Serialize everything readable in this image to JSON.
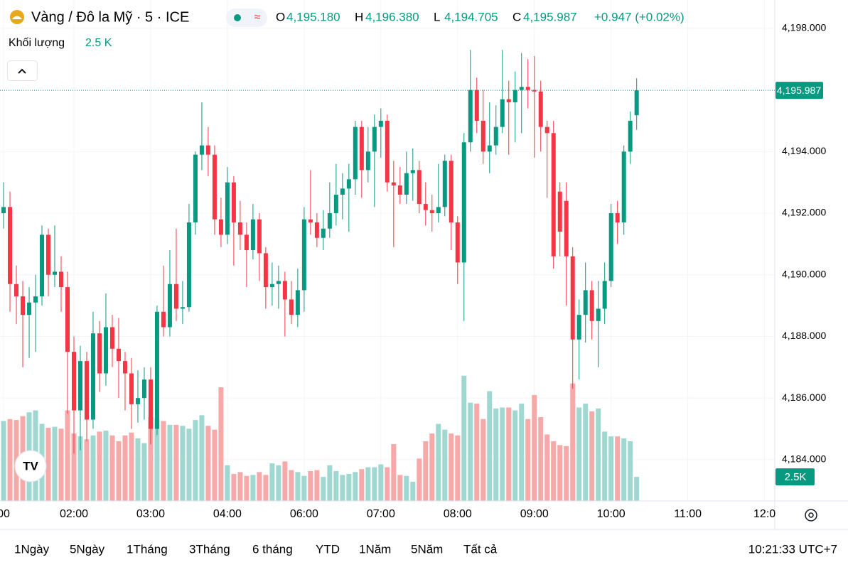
{
  "header": {
    "symbol": "Vàng / Đô la Mỹ · 5 · ICE",
    "ohlc": [
      {
        "prefix": "O",
        "value": "4,195.180"
      },
      {
        "prefix": "H",
        "value": "4,196.380"
      },
      {
        "prefix": "L",
        "value": "4,194.705"
      },
      {
        "prefix": "C",
        "value": "4,195.987"
      }
    ],
    "change": "+0.947 (+0.02%)",
    "volume_name": "Khối lượng",
    "volume_value": "2.5 K"
  },
  "chart_data": {
    "type": "candlestick",
    "up_color": "#089981",
    "down_color": "#f23645",
    "volume_up_color": "#9ed8d0",
    "volume_down_color": "#f7a9aa",
    "grid": true,
    "xlim": [
      -0.56,
      120.6
    ],
    "ylim": [
      4182.66,
      4198.92
    ],
    "volume_ylim": [
      0,
      52000
    ],
    "xticks": [
      {
        "value": 0,
        "label": "00"
      },
      {
        "value": 11,
        "label": "02:00"
      },
      {
        "value": 23,
        "label": "03:00"
      },
      {
        "value": 35,
        "label": "04:00"
      },
      {
        "value": 47,
        "label": "06:00"
      },
      {
        "value": 59,
        "label": "07:00"
      },
      {
        "value": 71,
        "label": "08:00"
      },
      {
        "value": 83,
        "label": "09:00"
      },
      {
        "value": 95,
        "label": "10:00"
      },
      {
        "value": 107,
        "label": "11:00"
      },
      {
        "value": 119,
        "label": "12:0"
      }
    ],
    "yticks": [
      {
        "value": 4184,
        "label": "4,184.000"
      },
      {
        "value": 4186,
        "label": "4,186.000"
      },
      {
        "value": 4188,
        "label": "4,188.000"
      },
      {
        "value": 4190,
        "label": "4,190.000"
      },
      {
        "value": 4192,
        "label": "4,192.000"
      },
      {
        "value": 4194,
        "label": "4,194.000"
      },
      {
        "value": 4198,
        "label": "4,198.000"
      }
    ],
    "last_price": {
      "value": 4195.987,
      "label": "4,195.987"
    },
    "last_volume": {
      "value": 2500,
      "label": "2.5K"
    },
    "x": [
      0,
      1,
      2,
      3,
      4,
      5,
      6,
      7,
      8,
      9,
      10,
      11,
      12,
      13,
      14,
      15,
      16,
      17,
      18,
      19,
      20,
      21,
      22,
      23,
      24,
      25,
      26,
      27,
      28,
      29,
      30,
      31,
      32,
      33,
      34,
      35,
      36,
      37,
      38,
      39,
      40,
      41,
      42,
      43,
      44,
      45,
      46,
      47,
      48,
      49,
      50,
      51,
      52,
      53,
      54,
      55,
      56,
      57,
      58,
      59,
      60,
      61,
      62,
      63,
      64,
      65,
      66,
      67,
      68,
      69,
      70,
      71,
      72,
      73,
      74,
      75,
      76,
      77,
      78,
      79,
      80,
      81,
      82,
      83,
      84,
      85,
      86,
      87,
      88,
      89,
      90,
      91,
      92,
      93,
      94,
      95,
      96,
      97,
      98,
      99
    ],
    "open": [
      4192.0,
      4192.2,
      4189.7,
      4189.3,
      4188.7,
      4189.1,
      4189.3,
      4191.3,
      4190.0,
      4190.1,
      4189.6,
      4187.5,
      4185.6,
      4187.2,
      4185.3,
      4188.1,
      4186.8,
      4188.3,
      4187.6,
      4187.2,
      4186.8,
      4185.8,
      4186.0,
      4186.6,
      4185.0,
      4188.8,
      4188.3,
      4189.7,
      4188.9,
      4188.95,
      4191.7,
      4193.9,
      4194.2,
      4193.9,
      4191.8,
      4191.3,
      4193.0,
      4191.7,
      4191.3,
      4190.8,
      4191.8,
      4190.7,
      4189.6,
      4189.7,
      4189.8,
      4189.2,
      4188.7,
      4189.5,
      4191.8,
      4191.7,
      4191.2,
      4191.5,
      4192.0,
      4192.6,
      4192.8,
      4193.1,
      4194.8,
      4193.4,
      4194.0,
      4194.8,
      4195.0,
      4193.0,
      4192.9,
      4192.6,
      4193.3,
      4193.4,
      4192.3,
      4192.1,
      4192.0,
      4192.2,
      4193.7,
      4191.7,
      4190.4,
      4194.3,
      4196.0,
      4195.0,
      4194.0,
      4194.2,
      4194.8,
      4195.7,
      4195.6,
      4196.0,
      4196.1,
      4196.0,
      4195.95,
      4194.8,
      4194.6,
      4192.7,
      4192.4,
      4190.6,
      4187.9,
      4188.7,
      4189.5,
      4188.5,
      4188.9,
      4189.8,
      4192.0,
      4191.7,
      4194.0,
      4195.18
    ],
    "high": [
      4193.0,
      4192.7,
      4190.3,
      4189.8,
      4189.6,
      4190.0,
      4191.6,
      4191.5,
      4191.6,
      4190.6,
      4190.1,
      4188.0,
      4187.7,
      4187.5,
      4188.8,
      4188.5,
      4189.4,
      4188.7,
      4188.6,
      4187.5,
      4187.3,
      4186.9,
      4187.0,
      4187.0,
      4189.0,
      4190.3,
      4190.8,
      4191.5,
      4189.8,
      4192.3,
      4194.0,
      4195.6,
      4194.8,
      4194.2,
      4192.5,
      4193.5,
      4193.2,
      4192.4,
      4191.7,
      4192.3,
      4192.0,
      4190.9,
      4190.4,
      4190.3,
      4190.1,
      4189.8,
      4190.2,
      4192.2,
      4193.4,
      4192.0,
      4192.1,
      4193.0,
      4193.6,
      4193.3,
      4193.6,
      4195.0,
      4195.0,
      4194.8,
      4195.2,
      4195.4,
      4195.2,
      4193.7,
      4193.5,
      4194.0,
      4194.1,
      4193.7,
      4193.0,
      4192.6,
      4193.6,
      4193.9,
      4193.9,
      4191.9,
      4194.6,
      4197.3,
      4196.4,
      4196.0,
      4195.6,
      4195.5,
      4197.3,
      4196.3,
      4196.6,
      4197.2,
      4197.0,
      4197.1,
      4196.3,
      4195.0,
      4195.0,
      4193.0,
      4193.0,
      4190.9,
      4189.2,
      4190.4,
      4189.8,
      4189.8,
      4190.4,
      4192.3,
      4192.4,
      4194.2,
      4195.3,
      4196.38
    ],
    "low": [
      4191.5,
      4188.8,
      4188.4,
      4187.0,
      4187.3,
      4187.5,
      4189.0,
      4189.3,
      4189.6,
      4188.8,
      4185.5,
      4184.2,
      4184.3,
      4184.6,
      4185.0,
      4186.2,
      4186.4,
      4187.0,
      4186.0,
      4185.6,
      4185.0,
      4185.2,
      4185.3,
      4184.5,
      4184.8,
      4188.0,
      4188.0,
      4188.5,
      4188.4,
      4188.8,
      4191.3,
      4193.4,
      4193.2,
      4191.3,
      4190.9,
      4191.0,
      4190.3,
      4190.8,
      4189.6,
      4190.5,
      4189.8,
      4188.9,
      4189.0,
      4188.9,
      4188.0,
      4188.4,
      4188.3,
      4188.8,
      4191.3,
      4190.9,
      4190.8,
      4191.2,
      4191.6,
      4191.8,
      4191.4,
      4192.6,
      4192.5,
      4193.0,
      4192.2,
      4193.8,
      4192.7,
      4190.9,
      4192.3,
      4192.3,
      4192.4,
      4192.0,
      4191.6,
      4191.4,
      4191.7,
      4191.9,
      4190.8,
      4189.7,
      4188.5,
      4194.0,
      4194.6,
      4193.6,
      4193.3,
      4193.9,
      4194.6,
      4193.9,
      4194.3,
      4194.6,
      4195.4,
      4193.8,
      4194.0,
      4192.5,
      4190.2,
      4190.6,
      4189.0,
      4186.3,
      4186.6,
      4187.8,
      4187.9,
      4187.0,
      4188.4,
      4189.6,
      4191.0,
      4191.3,
      4193.6,
      4194.705
    ],
    "close": [
      4192.2,
      4189.7,
      4189.3,
      4188.7,
      4189.1,
      4189.3,
      4191.3,
      4190.0,
      4190.1,
      4189.6,
      4187.5,
      4185.6,
      4187.2,
      4185.3,
      4188.1,
      4186.8,
      4188.3,
      4187.6,
      4187.2,
      4186.8,
      4185.8,
      4186.0,
      4186.6,
      4185.0,
      4188.8,
      4188.3,
      4189.7,
      4188.9,
      4188.95,
      4191.7,
      4193.9,
      4194.2,
      4193.9,
      4191.8,
      4191.3,
      4193.0,
      4191.7,
      4191.3,
      4190.8,
      4191.8,
      4190.7,
      4189.6,
      4189.7,
      4189.8,
      4189.2,
      4188.7,
      4189.5,
      4191.8,
      4191.7,
      4191.2,
      4191.5,
      4192.0,
      4192.6,
      4192.8,
      4193.1,
      4194.8,
      4193.4,
      4194.0,
      4194.8,
      4195.0,
      4193.0,
      4192.9,
      4192.6,
      4193.3,
      4193.4,
      4192.3,
      4192.1,
      4192.0,
      4192.2,
      4193.7,
      4191.7,
      4190.4,
      4194.3,
      4196.0,
      4195.0,
      4194.0,
      4194.2,
      4194.8,
      4195.7,
      4195.6,
      4196.0,
      4196.1,
      4196.0,
      4195.95,
      4194.8,
      4194.6,
      4190.6,
      4191.4,
      4190.6,
      4187.9,
      4188.7,
      4189.5,
      4188.5,
      4188.9,
      4189.8,
      4192.0,
      4191.7,
      4194.0,
      4195.0,
      4195.987
    ],
    "volume": [
      8300,
      8500,
      8400,
      8800,
      9200,
      9400,
      8000,
      7600,
      7700,
      7500,
      9400,
      7000,
      6700,
      6400,
      6800,
      7200,
      7300,
      6800,
      6200,
      6800,
      7100,
      6500,
      6000,
      8700,
      8500,
      8300,
      7900,
      7900,
      7800,
      7500,
      8400,
      8900,
      7800,
      7400,
      11800,
      3700,
      2800,
      3000,
      2600,
      2700,
      3000,
      2700,
      3900,
      3700,
      4100,
      3200,
      3000,
      2600,
      3100,
      3200,
      2500,
      3700,
      3100,
      2700,
      2800,
      3000,
      3300,
      3500,
      3500,
      3800,
      3500,
      5900,
      2700,
      2600,
      2000,
      4400,
      6200,
      7000,
      8000,
      7400,
      7000,
      6800,
      13000,
      10200,
      10100,
      8500,
      11400,
      9600,
      9700,
      9700,
      9400,
      10100,
      8500,
      11000,
      8700,
      6900,
      6200,
      5800,
      5700,
      12200,
      9700,
      10100,
      9300,
      9600,
      7200,
      6700,
      6700,
      6500,
      6200,
      2500
    ]
  },
  "ranges": [
    "1Ngày",
    "5Ngày",
    "1Tháng",
    "3Tháng",
    "6 tháng",
    "YTD",
    "1Năm",
    "5Năm",
    "Tất cả"
  ],
  "clock": "10:21:33 UTC+7"
}
